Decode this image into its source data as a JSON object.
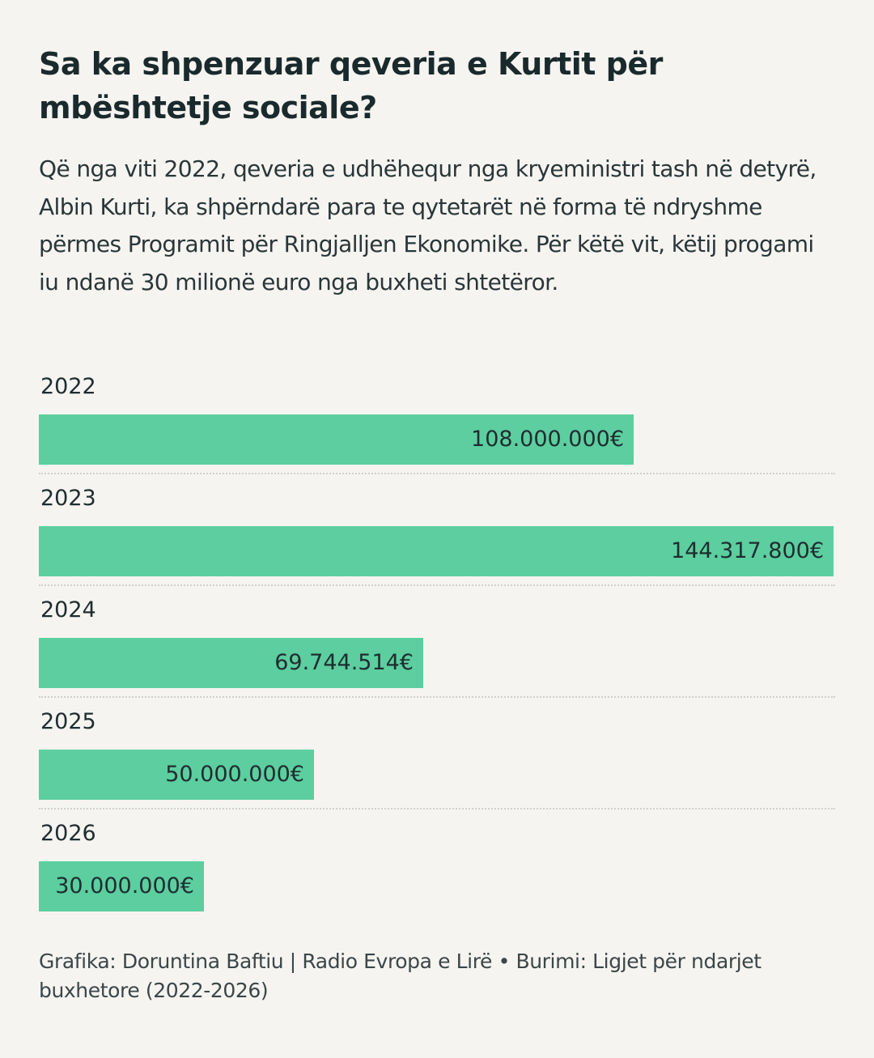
{
  "header": {
    "title": "Sa ka shpenzuar qeveria e Kurtit për mbështetje sociale?",
    "subtitle": "Që nga viti 2022, qeveria e udhëhequr nga kryeministri tash në detyrë, Albin Kurti, ka shpërndarë para te qytetarët në forma të ndryshme përmes Programit për Ringjalljen Ekonomike. Për këtë vit, këtij progami iu ndanë 30 milionë euro nga buxheti shtetëror."
  },
  "chart_data": {
    "type": "bar",
    "orientation": "horizontal",
    "title": "Sa ka shpenzuar qeveria e Kurtit për mbështetje sociale?",
    "xlabel": "",
    "ylabel": "",
    "categories": [
      "2022",
      "2023",
      "2024",
      "2025",
      "2026"
    ],
    "values": [
      108000000,
      144317800,
      69744514,
      50000000,
      30000000
    ],
    "value_labels": [
      "108.000.000€",
      "144.317.800€",
      "69.744.514€",
      "50.000.000€",
      "30.000.000€"
    ],
    "xlim": [
      0,
      144317800
    ],
    "grid": false,
    "legend": "none",
    "bar_color": "#5cce9f",
    "separator_color": "#cfd0cd"
  },
  "footer": {
    "credit": "Grafika: Doruntina Baftiu | Radio Evropa e Lirë • Burimi: Ligjet për ndarjet buxhetore (2022-2026)"
  }
}
